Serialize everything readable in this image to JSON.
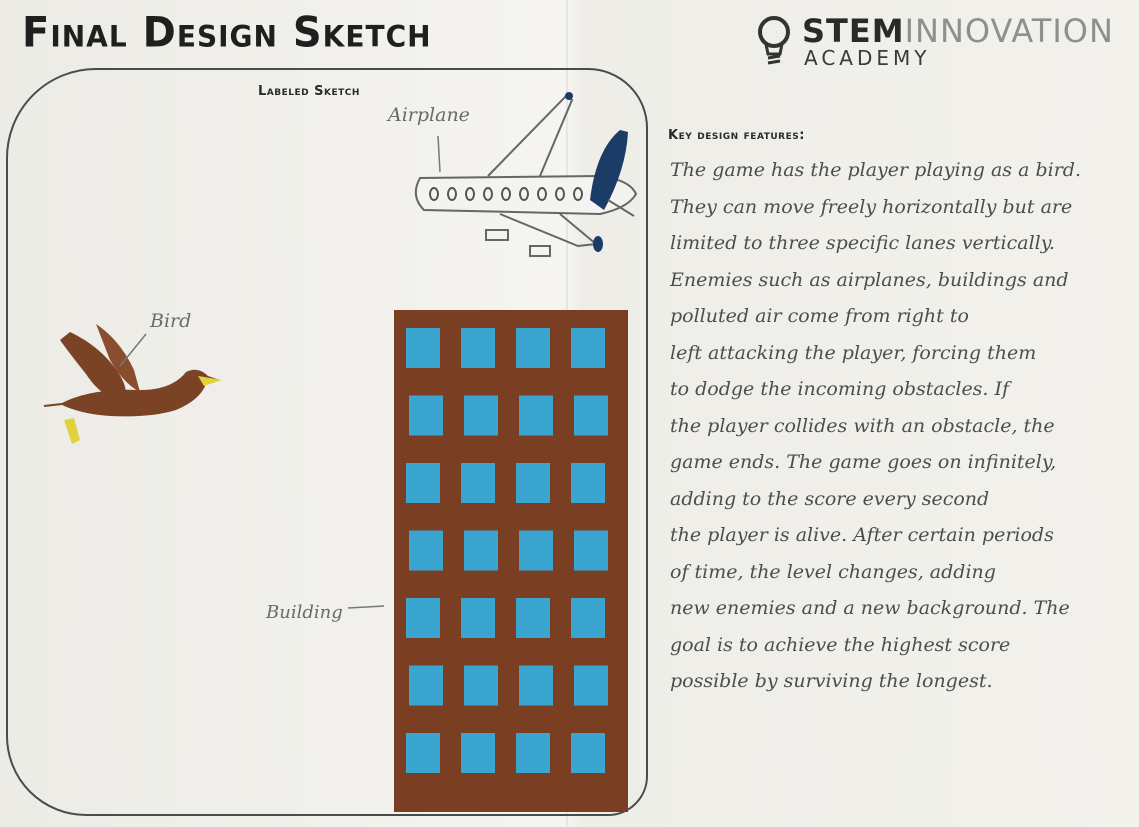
{
  "header": {
    "title": "Final Design Sketch",
    "logo_bold": "STEM",
    "logo_light": "INNOVATION",
    "logo_sub": "ACADEMY"
  },
  "sketch": {
    "section_label": "Labeled Sketch",
    "labels": {
      "airplane": "Airplane",
      "bird": "Bird",
      "building": "Building"
    }
  },
  "features": {
    "heading": "Key design features:",
    "lines": [
      "The game has the player playing as a bird.",
      "They can move freely horizontally but are",
      "limited to three specific lanes vertically.",
      "Enemies such as airplanes, buildings and",
      "polluted air come from right to",
      "left attacking the player, forcing them",
      "to dodge the incoming obstacles. If",
      "the player collides with an obstacle, the",
      "game ends. The game goes on infinitely,",
      "adding to the score every second",
      "the player is alive. After certain periods",
      "of time, the level changes, adding",
      "new enemies and a new background. The",
      "goal is to achieve the highest score",
      "possible by surviving the longest."
    ]
  },
  "colors": {
    "brick": "#7a3e22",
    "window": "#3aa6d0",
    "bird_brown": "#7b4326",
    "beak": "#e2d23a"
  }
}
